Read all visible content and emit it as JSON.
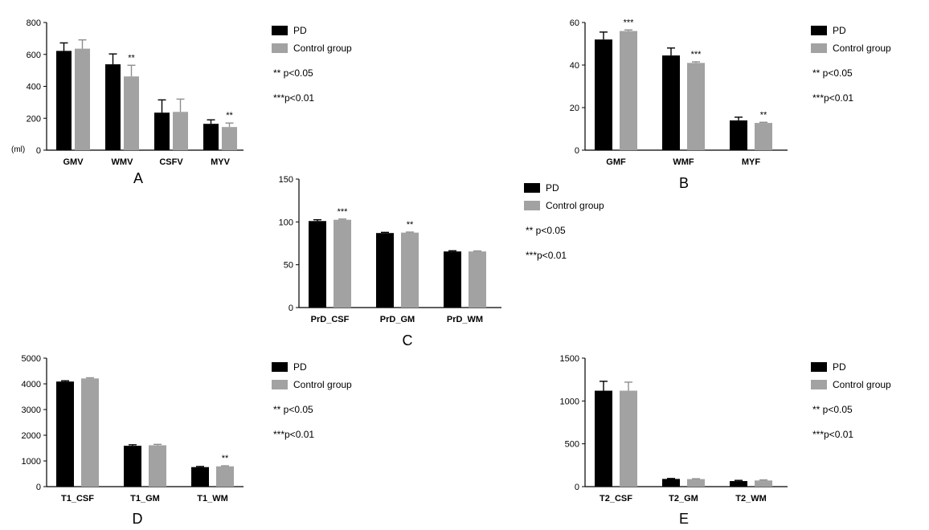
{
  "legend": {
    "pd_label": "PD",
    "control_label": "Control group",
    "note_1": "** p<0.05",
    "note_2": "***p<0.01"
  },
  "colors": {
    "pd": "#000000",
    "control": "#a2a2a2",
    "axis": "#000000"
  },
  "chart_data": [
    {
      "type": "bar",
      "panel": "A",
      "categories": [
        "GMV",
        "WMV",
        "CSFV",
        "MYV"
      ],
      "series": [
        {
          "name": "PD",
          "values": [
            622,
            538,
            235,
            165
          ],
          "errors": [
            50,
            65,
            80,
            25
          ]
        },
        {
          "name": "Control group",
          "values": [
            636,
            462,
            240,
            145
          ],
          "errors": [
            55,
            70,
            80,
            25
          ]
        }
      ],
      "significance": [
        "",
        "**",
        "",
        "**"
      ],
      "ylim": [
        0,
        800
      ],
      "yticks": [
        0,
        200,
        400,
        600,
        800
      ],
      "unit_label": "(ml)"
    },
    {
      "type": "bar",
      "panel": "B",
      "categories": [
        "GMF",
        "WMF",
        "MYF"
      ],
      "series": [
        {
          "name": "PD",
          "values": [
            52,
            44.5,
            14
          ],
          "errors": [
            3.5,
            3.5,
            1.5
          ]
        },
        {
          "name": "Control group",
          "values": [
            56,
            41,
            12.8
          ],
          "errors": [
            0.5,
            0.5,
            0.3
          ]
        }
      ],
      "significance": [
        "***",
        "***",
        "**"
      ],
      "ylim": [
        0,
        60
      ],
      "yticks": [
        0,
        20,
        40,
        60
      ]
    },
    {
      "type": "bar",
      "panel": "C",
      "categories": [
        "PrD_CSF",
        "PrD_GM",
        "PrD_WM"
      ],
      "series": [
        {
          "name": "PD",
          "values": [
            101,
            87,
            65.5
          ],
          "errors": [
            1.5,
            0.8,
            0.8
          ]
        },
        {
          "name": "Control group",
          "values": [
            102.5,
            87.5,
            65.5
          ],
          "errors": [
            0.8,
            0.6,
            0.6
          ]
        }
      ],
      "significance": [
        "***",
        "**",
        ""
      ],
      "ylim": [
        0,
        150
      ],
      "yticks": [
        0,
        50,
        100,
        150
      ]
    },
    {
      "type": "bar",
      "panel": "D",
      "categories": [
        "T1_CSF",
        "T1_GM",
        "T1_WM"
      ],
      "series": [
        {
          "name": "PD",
          "values": [
            4090,
            1590,
            760
          ],
          "errors": [
            30,
            40,
            25
          ]
        },
        {
          "name": "Control group",
          "values": [
            4210,
            1610,
            790
          ],
          "errors": [
            25,
            35,
            20
          ]
        }
      ],
      "significance": [
        "",
        "",
        "**"
      ],
      "ylim": [
        0,
        5000
      ],
      "yticks": [
        0,
        1000,
        2000,
        3000,
        4000,
        5000
      ]
    },
    {
      "type": "bar",
      "panel": "E",
      "categories": [
        "T2_CSF",
        "T2_GM",
        "T2_WM"
      ],
      "series": [
        {
          "name": "PD",
          "values": [
            1120,
            90,
            65
          ],
          "errors": [
            110,
            5,
            8
          ]
        },
        {
          "name": "Control group",
          "values": [
            1120,
            88,
            72
          ],
          "errors": [
            100,
            4,
            6
          ]
        }
      ],
      "significance": [
        "",
        "",
        ""
      ],
      "ylim": [
        0,
        1500
      ],
      "yticks": [
        0,
        500,
        1000,
        1500
      ]
    }
  ]
}
